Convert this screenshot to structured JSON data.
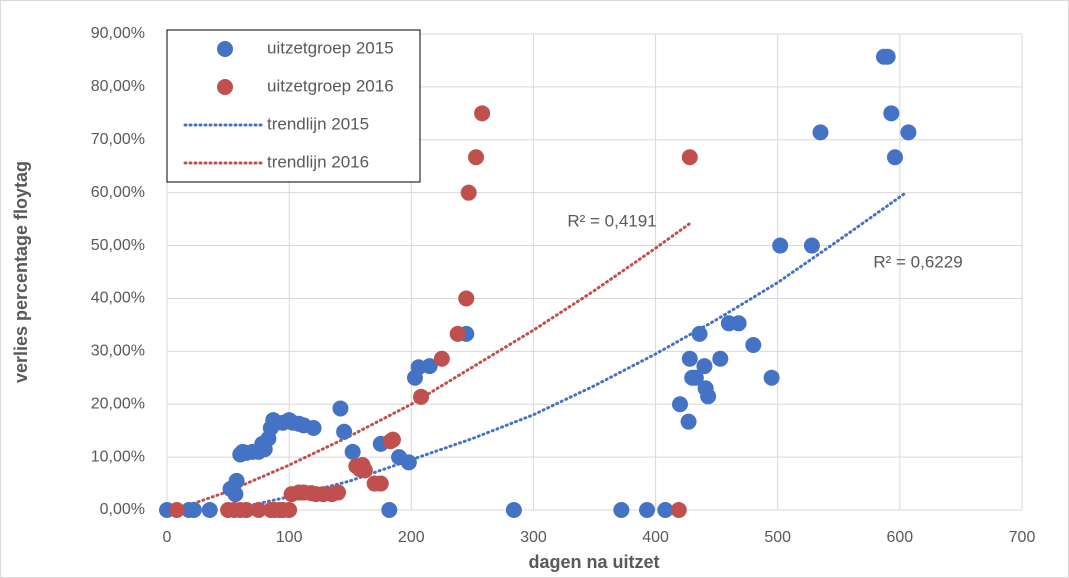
{
  "chart_data": {
    "type": "scatter",
    "x_label": "dagen na uitzet",
    "y_label": "verlies percentage floytag",
    "xlim": [
      0,
      700
    ],
    "xticks": [
      0,
      100,
      200,
      300,
      400,
      500,
      600,
      700
    ],
    "ylim": [
      0,
      90
    ],
    "yticks": [
      {
        "value": 0,
        "label": "0,00%"
      },
      {
        "value": 10,
        "label": "10,00%"
      },
      {
        "value": 20,
        "label": "20,00%"
      },
      {
        "value": 30,
        "label": "30,00%"
      },
      {
        "value": 40,
        "label": "40,00%"
      },
      {
        "value": 50,
        "label": "50,00%"
      },
      {
        "value": 60,
        "label": "60,00%"
      },
      {
        "value": 70,
        "label": "70,00%"
      },
      {
        "value": 80,
        "label": "80,00%"
      },
      {
        "value": 90,
        "label": "90,00%"
      }
    ],
    "grid": true,
    "legend": "upper left",
    "annotations": [
      "R² = 0,4191",
      "R² = 0,6229"
    ],
    "series": [
      {
        "name": "uitzetgroep 2015",
        "type": "scatter",
        "color": "#4472c4",
        "x": [
          0,
          18,
          22,
          35,
          52,
          56,
          57,
          60,
          62,
          65,
          70,
          75,
          78,
          80,
          83,
          85,
          87,
          90,
          95,
          100,
          103,
          108,
          112,
          120,
          142,
          145,
          152,
          175,
          182,
          190,
          198,
          203,
          206,
          215,
          245,
          284,
          372,
          393,
          408,
          420,
          427,
          428,
          430,
          433,
          436,
          440,
          441,
          443,
          453,
          460,
          468,
          480,
          495,
          502,
          528,
          535,
          587,
          590,
          593,
          596,
          607
        ],
        "values": [
          0,
          0,
          0,
          0,
          4,
          3,
          5.5,
          10.5,
          11,
          10.8,
          11,
          11,
          12.5,
          11.5,
          13.5,
          15.5,
          17,
          16.5,
          16.5,
          17,
          16.5,
          16.3,
          16,
          15.5,
          19.2,
          14.8,
          11,
          12.5,
          0,
          10,
          9,
          25,
          27,
          27.2,
          33.3,
          0,
          0,
          0,
          0,
          20,
          16.7,
          28.6,
          25,
          25,
          33.3,
          27.2,
          23,
          21.5,
          28.6,
          35.3,
          35.3,
          31.2,
          25,
          50,
          50,
          71.4,
          85.7,
          85.7,
          75,
          66.7,
          71.4
        ]
      },
      {
        "name": "uitzetgroep 2016",
        "type": "scatter",
        "color": "#c0504d",
        "x": [
          8,
          50,
          55,
          60,
          65,
          75,
          85,
          88,
          92,
          95,
          100,
          102,
          108,
          112,
          118,
          122,
          128,
          135,
          140,
          155,
          158,
          160,
          162,
          170,
          175,
          183,
          185,
          208,
          225,
          238,
          245,
          247,
          253,
          258,
          428,
          419
        ],
        "values": [
          0,
          0,
          0,
          0,
          0,
          0,
          0,
          0,
          0,
          0,
          0,
          3,
          3.3,
          3.3,
          3.2,
          3,
          3,
          3,
          3.3,
          8.3,
          7.7,
          8.5,
          7.5,
          5,
          5,
          13,
          13.3,
          21.4,
          28.6,
          33.3,
          40,
          60,
          66.7,
          75,
          66.7,
          0
        ]
      },
      {
        "name": "trendlijn 2015",
        "type": "line",
        "line_style": "dotted",
        "color": "#4472c4",
        "x": [
          55,
          100,
          150,
          200,
          250,
          300,
          350,
          400,
          450,
          500,
          550,
          605
        ],
        "values": [
          0.2,
          2.5,
          5.5,
          9.5,
          13.5,
          18,
          23.5,
          29.5,
          36,
          43,
          51,
          60
        ]
      },
      {
        "name": "trendlijn 2016",
        "type": "line",
        "line_style": "dotted",
        "color": "#c0504d",
        "x": [
          10,
          50,
          100,
          150,
          200,
          250,
          300,
          350,
          400,
          430
        ],
        "values": [
          0.3,
          3.5,
          8.5,
          14,
          20,
          27,
          34,
          41.5,
          49.5,
          54.5
        ]
      }
    ]
  }
}
